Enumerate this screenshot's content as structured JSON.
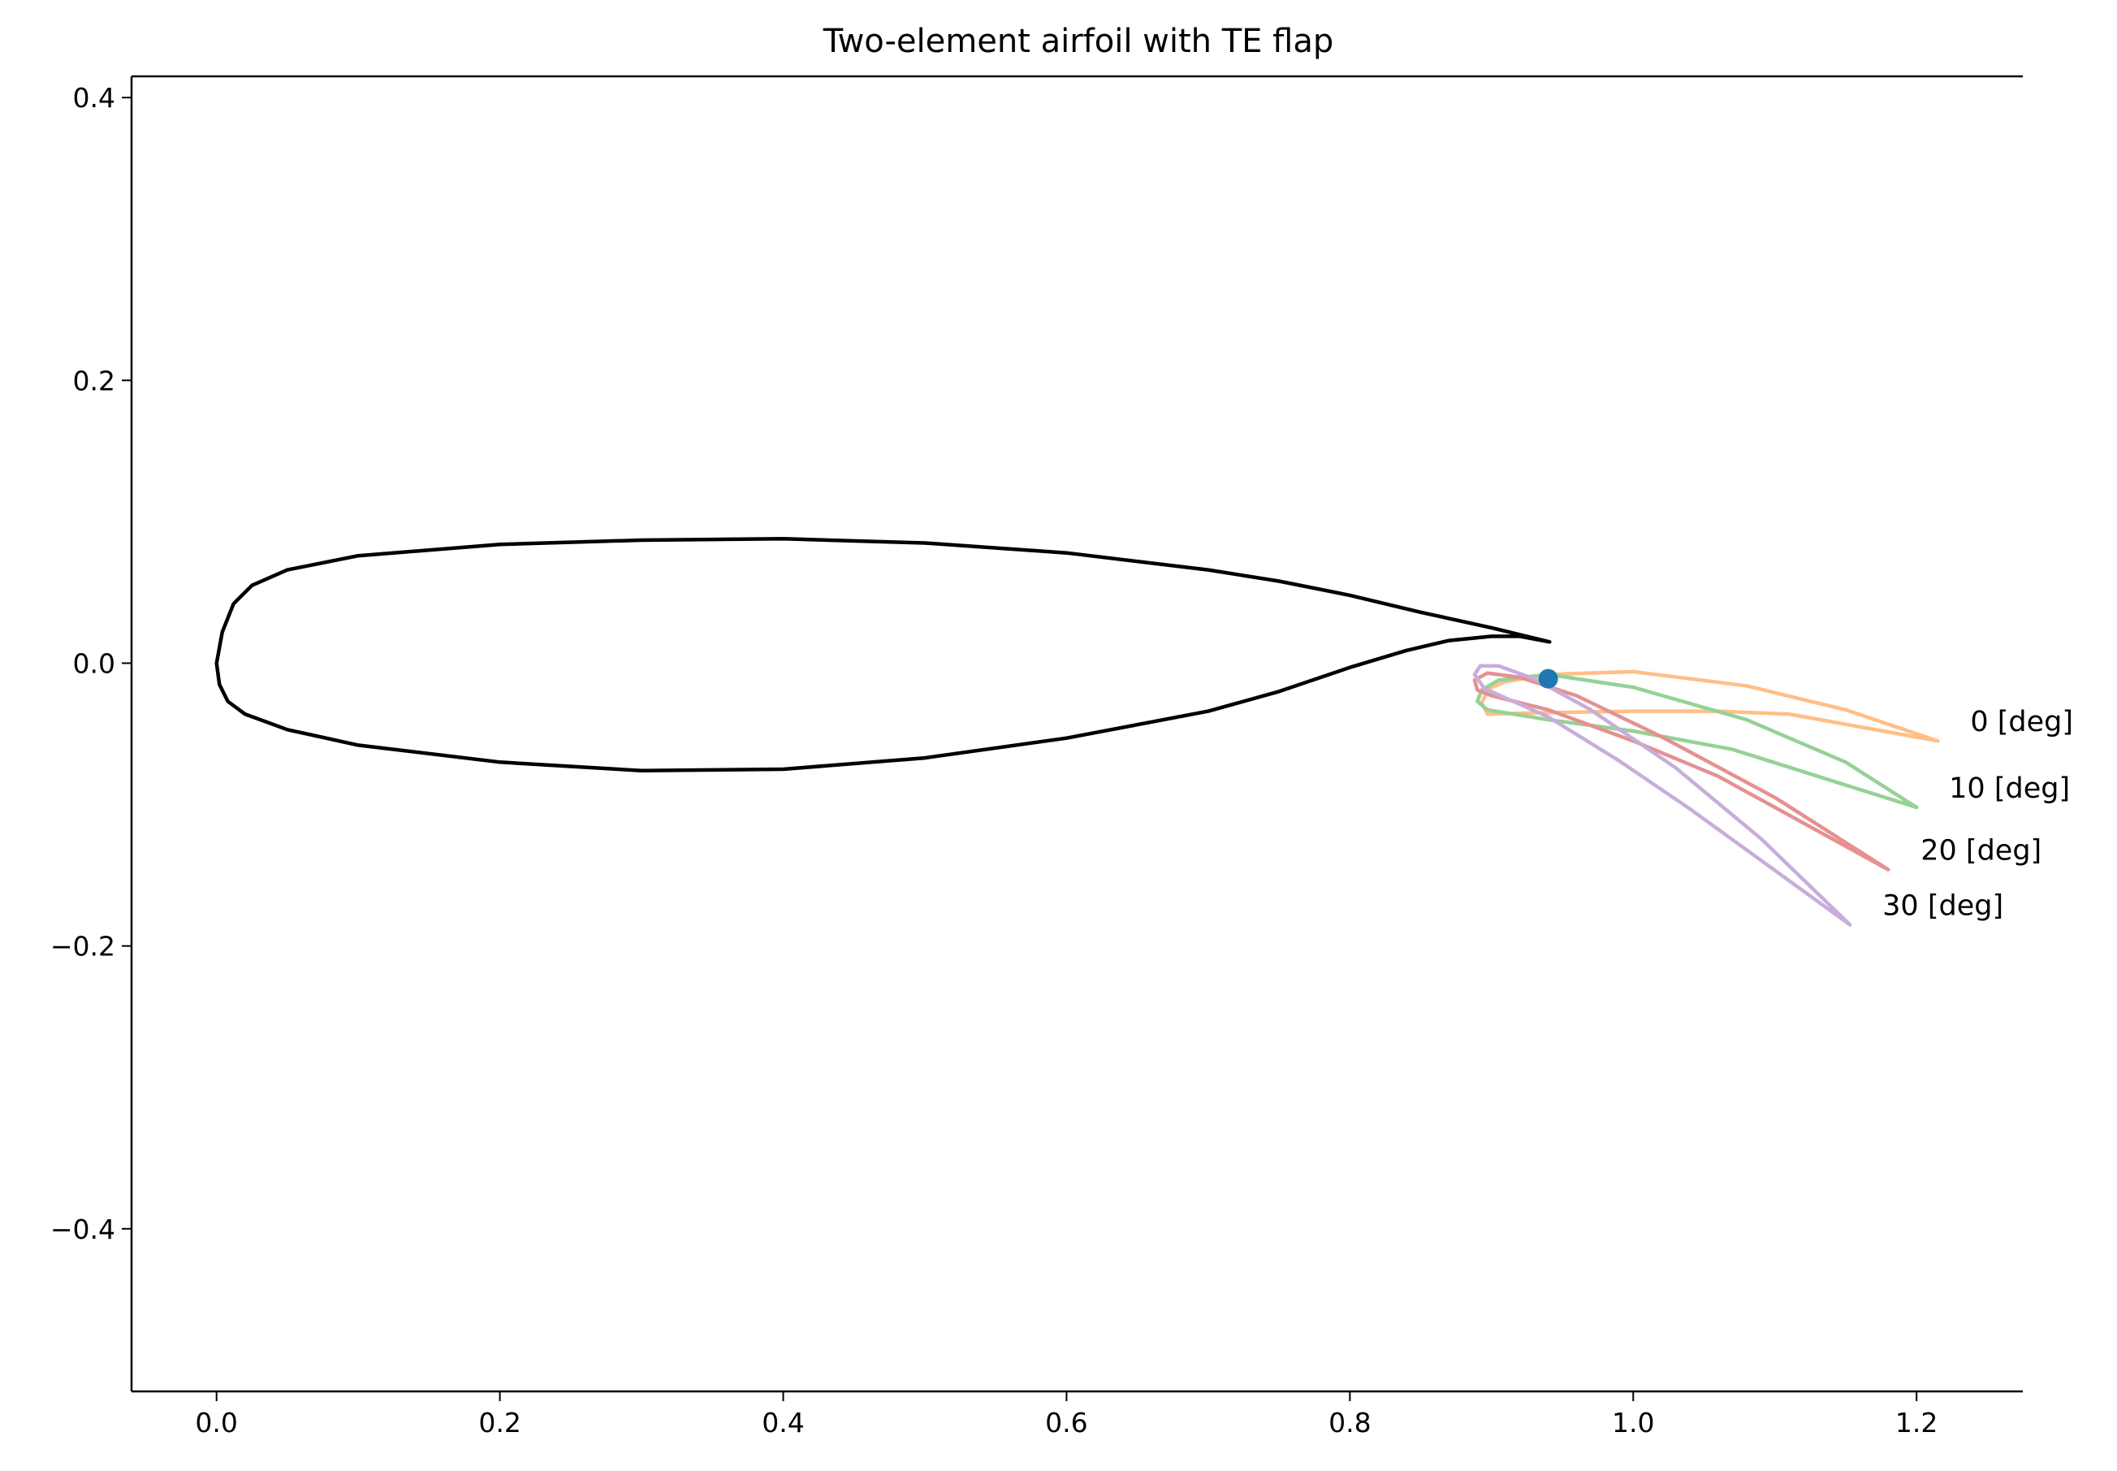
{
  "chart_data": {
    "type": "line",
    "title": "Two-element airfoil with TE flap",
    "xlabel": "",
    "ylabel": "",
    "xlim": [
      -0.06,
      1.275
    ],
    "ylim": [
      -0.515,
      0.415
    ],
    "xticks": [
      0.0,
      0.2,
      0.4,
      0.6,
      0.8,
      1.0,
      1.2
    ],
    "xtick_labels": [
      "0.0",
      "0.2",
      "0.4",
      "0.6",
      "0.8",
      "1.0",
      "1.2"
    ],
    "yticks": [
      0.4,
      0.2,
      0.0,
      -0.2,
      -0.4
    ],
    "ytick_labels": [
      "0.4",
      "0.2",
      "0.0",
      "−0.2",
      "−0.4"
    ],
    "spines": [
      "left",
      "bottom",
      "top"
    ],
    "grid": false,
    "legend": "none",
    "main_element": {
      "color": "#000000",
      "x": [
        0.941,
        0.9,
        0.85,
        0.8,
        0.75,
        0.7,
        0.6,
        0.5,
        0.4,
        0.3,
        0.2,
        0.1,
        0.05,
        0.025,
        0.012,
        0.004,
        0.0,
        0.002,
        0.008,
        0.02,
        0.05,
        0.1,
        0.2,
        0.3,
        0.4,
        0.5,
        0.6,
        0.7,
        0.75,
        0.8,
        0.84,
        0.87,
        0.9,
        0.92,
        0.941
      ],
      "y": [
        0.015,
        0.025,
        0.036,
        0.048,
        0.058,
        0.066,
        0.078,
        0.085,
        0.088,
        0.087,
        0.084,
        0.076,
        0.066,
        0.055,
        0.042,
        0.022,
        0.0,
        -0.015,
        -0.027,
        -0.036,
        -0.047,
        -0.058,
        -0.07,
        -0.076,
        -0.075,
        -0.067,
        -0.053,
        -0.034,
        -0.02,
        -0.003,
        0.009,
        0.016,
        0.019,
        0.019,
        0.015
      ]
    },
    "hinge_point": {
      "x": 0.94,
      "y": -0.011,
      "color": "#1f77b4"
    },
    "flaps": [
      {
        "label": "0 [deg]",
        "color": "#ffbf86",
        "x": [
          1.215,
          1.15,
          1.08,
          1.0,
          0.94,
          0.91,
          0.898,
          0.893,
          0.897,
          0.94,
          1.0,
          1.06,
          1.11,
          1.215
        ],
        "y": [
          -0.055,
          -0.033,
          -0.016,
          -0.006,
          -0.008,
          -0.013,
          -0.018,
          -0.028,
          -0.036,
          -0.035,
          -0.034,
          -0.034,
          -0.036,
          -0.055
        ]
      },
      {
        "label": "10 [deg]",
        "color": "#96d196",
        "x": [
          1.2,
          1.15,
          1.08,
          1.0,
          0.94,
          0.905,
          0.893,
          0.89,
          0.897,
          0.94,
          1.0,
          1.07,
          1.2
        ],
        "y": [
          -0.102,
          -0.07,
          -0.04,
          -0.017,
          -0.008,
          -0.012,
          -0.019,
          -0.027,
          -0.033,
          -0.04,
          -0.048,
          -0.061,
          -0.102
        ]
      },
      {
        "label": "20 [deg]",
        "color": "#e59191",
        "x": [
          1.18,
          1.1,
          1.02,
          0.96,
          0.92,
          0.897,
          0.888,
          0.89,
          0.9,
          0.94,
          1.0,
          1.06,
          1.18
        ],
        "y": [
          -0.146,
          -0.095,
          -0.052,
          -0.023,
          -0.01,
          -0.007,
          -0.012,
          -0.019,
          -0.023,
          -0.033,
          -0.055,
          -0.08,
          -0.146
        ]
      },
      {
        "label": "30 [deg]",
        "color": "#c8addb",
        "x": [
          1.153,
          1.09,
          1.03,
          0.97,
          0.93,
          0.905,
          0.892,
          0.888,
          0.895,
          0.94,
          0.99,
          1.04,
          1.153
        ],
        "y": [
          -0.185,
          -0.124,
          -0.074,
          -0.033,
          -0.011,
          -0.002,
          -0.002,
          -0.008,
          -0.018,
          -0.038,
          -0.069,
          -0.103,
          -0.185
        ]
      }
    ]
  }
}
